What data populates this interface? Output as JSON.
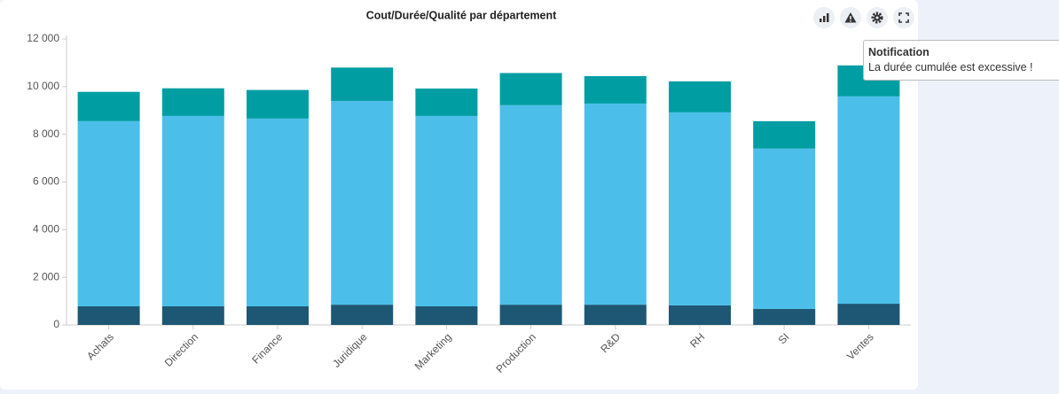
{
  "chart_data": {
    "type": "stacked_bar",
    "title": "Cout/Durée/Qualité par département",
    "categories": [
      "Achats",
      "Direction",
      "Finance",
      "Juridique",
      "Marketing",
      "Production",
      "R&D",
      "RH",
      "SI",
      "Ventes"
    ],
    "series": [
      {
        "color": "#1e5773",
        "values": [
          780,
          780,
          780,
          850,
          780,
          850,
          850,
          820,
          670,
          890
        ]
      },
      {
        "color": "#4bbfea",
        "values": [
          7770,
          7990,
          7880,
          8550,
          7990,
          8370,
          8440,
          8100,
          6730,
          8700
        ]
      },
      {
        "color": "#009ea3",
        "values": [
          1230,
          1160,
          1200,
          1400,
          1150,
          1350,
          1150,
          1300,
          1150,
          1300
        ]
      }
    ],
    "ylim": [
      0,
      12000
    ],
    "yticks": [
      0,
      {
        "value": 2000,
        "label": "2 000"
      },
      {
        "value": 4000,
        "label": "4 000"
      },
      {
        "value": 6000,
        "label": "6 000"
      },
      {
        "value": 8000,
        "label": "8 000"
      },
      {
        "value": 10000,
        "label": "10 000"
      },
      {
        "value": 12000,
        "label": "12 000"
      }
    ],
    "grid": false
  },
  "tooltip": {
    "title": "Notification",
    "text": "La durée cumulée est excessive !"
  }
}
